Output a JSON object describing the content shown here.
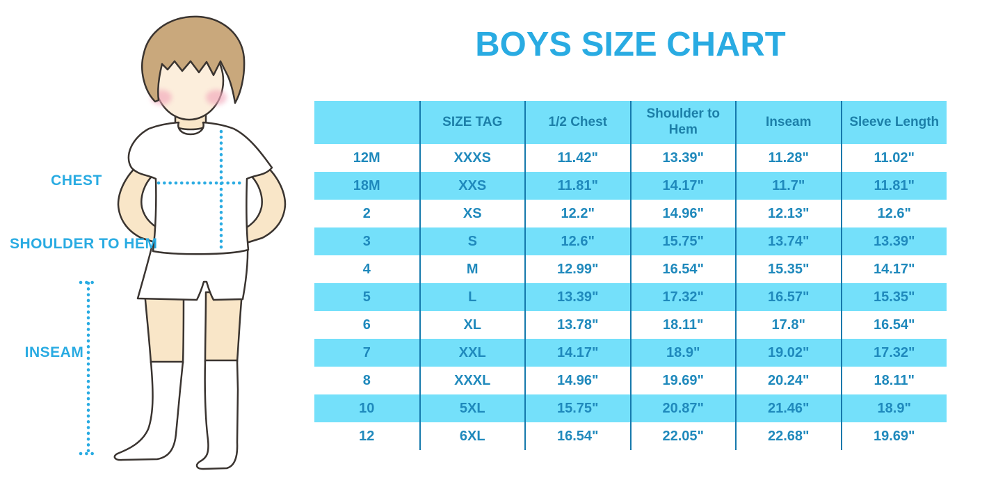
{
  "title": "BOYS SIZE CHART",
  "colors": {
    "accent": "#29ABE2",
    "band": "#74E0FA",
    "divider": "#1579AC",
    "header-text": "#1C7FA8",
    "cell-text": "#1F89BC",
    "hair": "#C9A87C",
    "skin-face": "#FCEEDC",
    "skin-limb": "#F9E6C8",
    "blush": "#F2A9BC",
    "outline": "#3A3430"
  },
  "figure": {
    "labels": {
      "chest": "CHEST",
      "shoulder_to_hem": "SHOULDER TO HEM",
      "inseam": "INSEAM"
    }
  },
  "chart_data": {
    "type": "table",
    "title": "BOYS SIZE CHART",
    "columns": [
      "",
      "SIZE TAG",
      "1/2 Chest",
      "Shoulder to Hem",
      "Inseam",
      "Sleeve Length"
    ],
    "rows": [
      [
        "12M",
        "XXXS",
        "11.42\"",
        "13.39\"",
        "11.28\"",
        "11.02\""
      ],
      [
        "18M",
        "XXS",
        "11.81\"",
        "14.17\"",
        "11.7\"",
        "11.81\""
      ],
      [
        "2",
        "XS",
        "12.2\"",
        "14.96\"",
        "12.13\"",
        "12.6\""
      ],
      [
        "3",
        "S",
        "12.6\"",
        "15.75\"",
        "13.74\"",
        "13.39\""
      ],
      [
        "4",
        "M",
        "12.99\"",
        "16.54\"",
        "15.35\"",
        "14.17\""
      ],
      [
        "5",
        "L",
        "13.39\"",
        "17.32\"",
        "16.57\"",
        "15.35\""
      ],
      [
        "6",
        "XL",
        "13.78\"",
        "18.11\"",
        "17.8\"",
        "16.54\""
      ],
      [
        "7",
        "XXL",
        "14.17\"",
        "18.9\"",
        "19.02\"",
        "17.32\""
      ],
      [
        "8",
        "XXXL",
        "14.96\"",
        "19.69\"",
        "20.24\"",
        "18.11\""
      ],
      [
        "10",
        "5XL",
        "15.75\"",
        "20.87\"",
        "21.46\"",
        "18.9\""
      ],
      [
        "12",
        "6XL",
        "16.54\"",
        "22.05\"",
        "22.68\"",
        "19.69\""
      ]
    ]
  }
}
